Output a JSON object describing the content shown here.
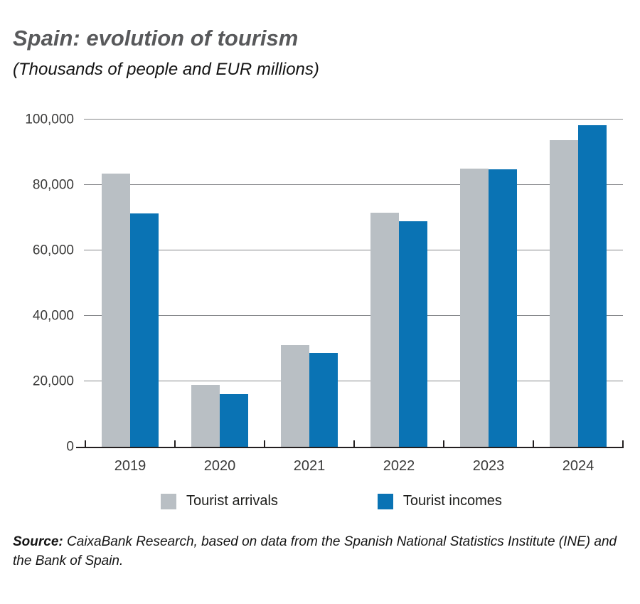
{
  "header": {
    "title": "Spain: evolution of tourism",
    "subtitle": "(Thousands of people and EUR millions)"
  },
  "chart_data": {
    "type": "bar",
    "title": "Spain: evolution of tourism",
    "subtitle": "(Thousands of people and EUR millions)",
    "categories": [
      "2019",
      "2020",
      "2021",
      "2022",
      "2023",
      "2024"
    ],
    "series": [
      {
        "name": "Tourist arrivals",
        "color": "#b9bfc4",
        "values": [
          83500,
          18900,
          31100,
          71500,
          85100,
          93700
        ]
      },
      {
        "name": "Tourist incomes",
        "color": "#0a73b4",
        "values": [
          71200,
          16100,
          28700,
          68900,
          84800,
          98300
        ]
      }
    ],
    "ylim": [
      0,
      100000
    ],
    "yticks": [
      0,
      20000,
      40000,
      60000,
      80000,
      100000
    ],
    "ytick_labels": [
      "0",
      "20,000",
      "40,000",
      "60,000",
      "80,000",
      "100,000"
    ],
    "grid": "horizontal",
    "legend_position": "bottom"
  },
  "legend": {
    "items": [
      {
        "label": "Tourist arrivals",
        "color": "#b9bfc4"
      },
      {
        "label": "Tourist incomes",
        "color": "#0a73b4"
      }
    ]
  },
  "source": {
    "label": "Source:",
    "text": " CaixaBank Research, based on data from the Spanish National Statistics Institute (INE) and the Bank of Spain."
  }
}
